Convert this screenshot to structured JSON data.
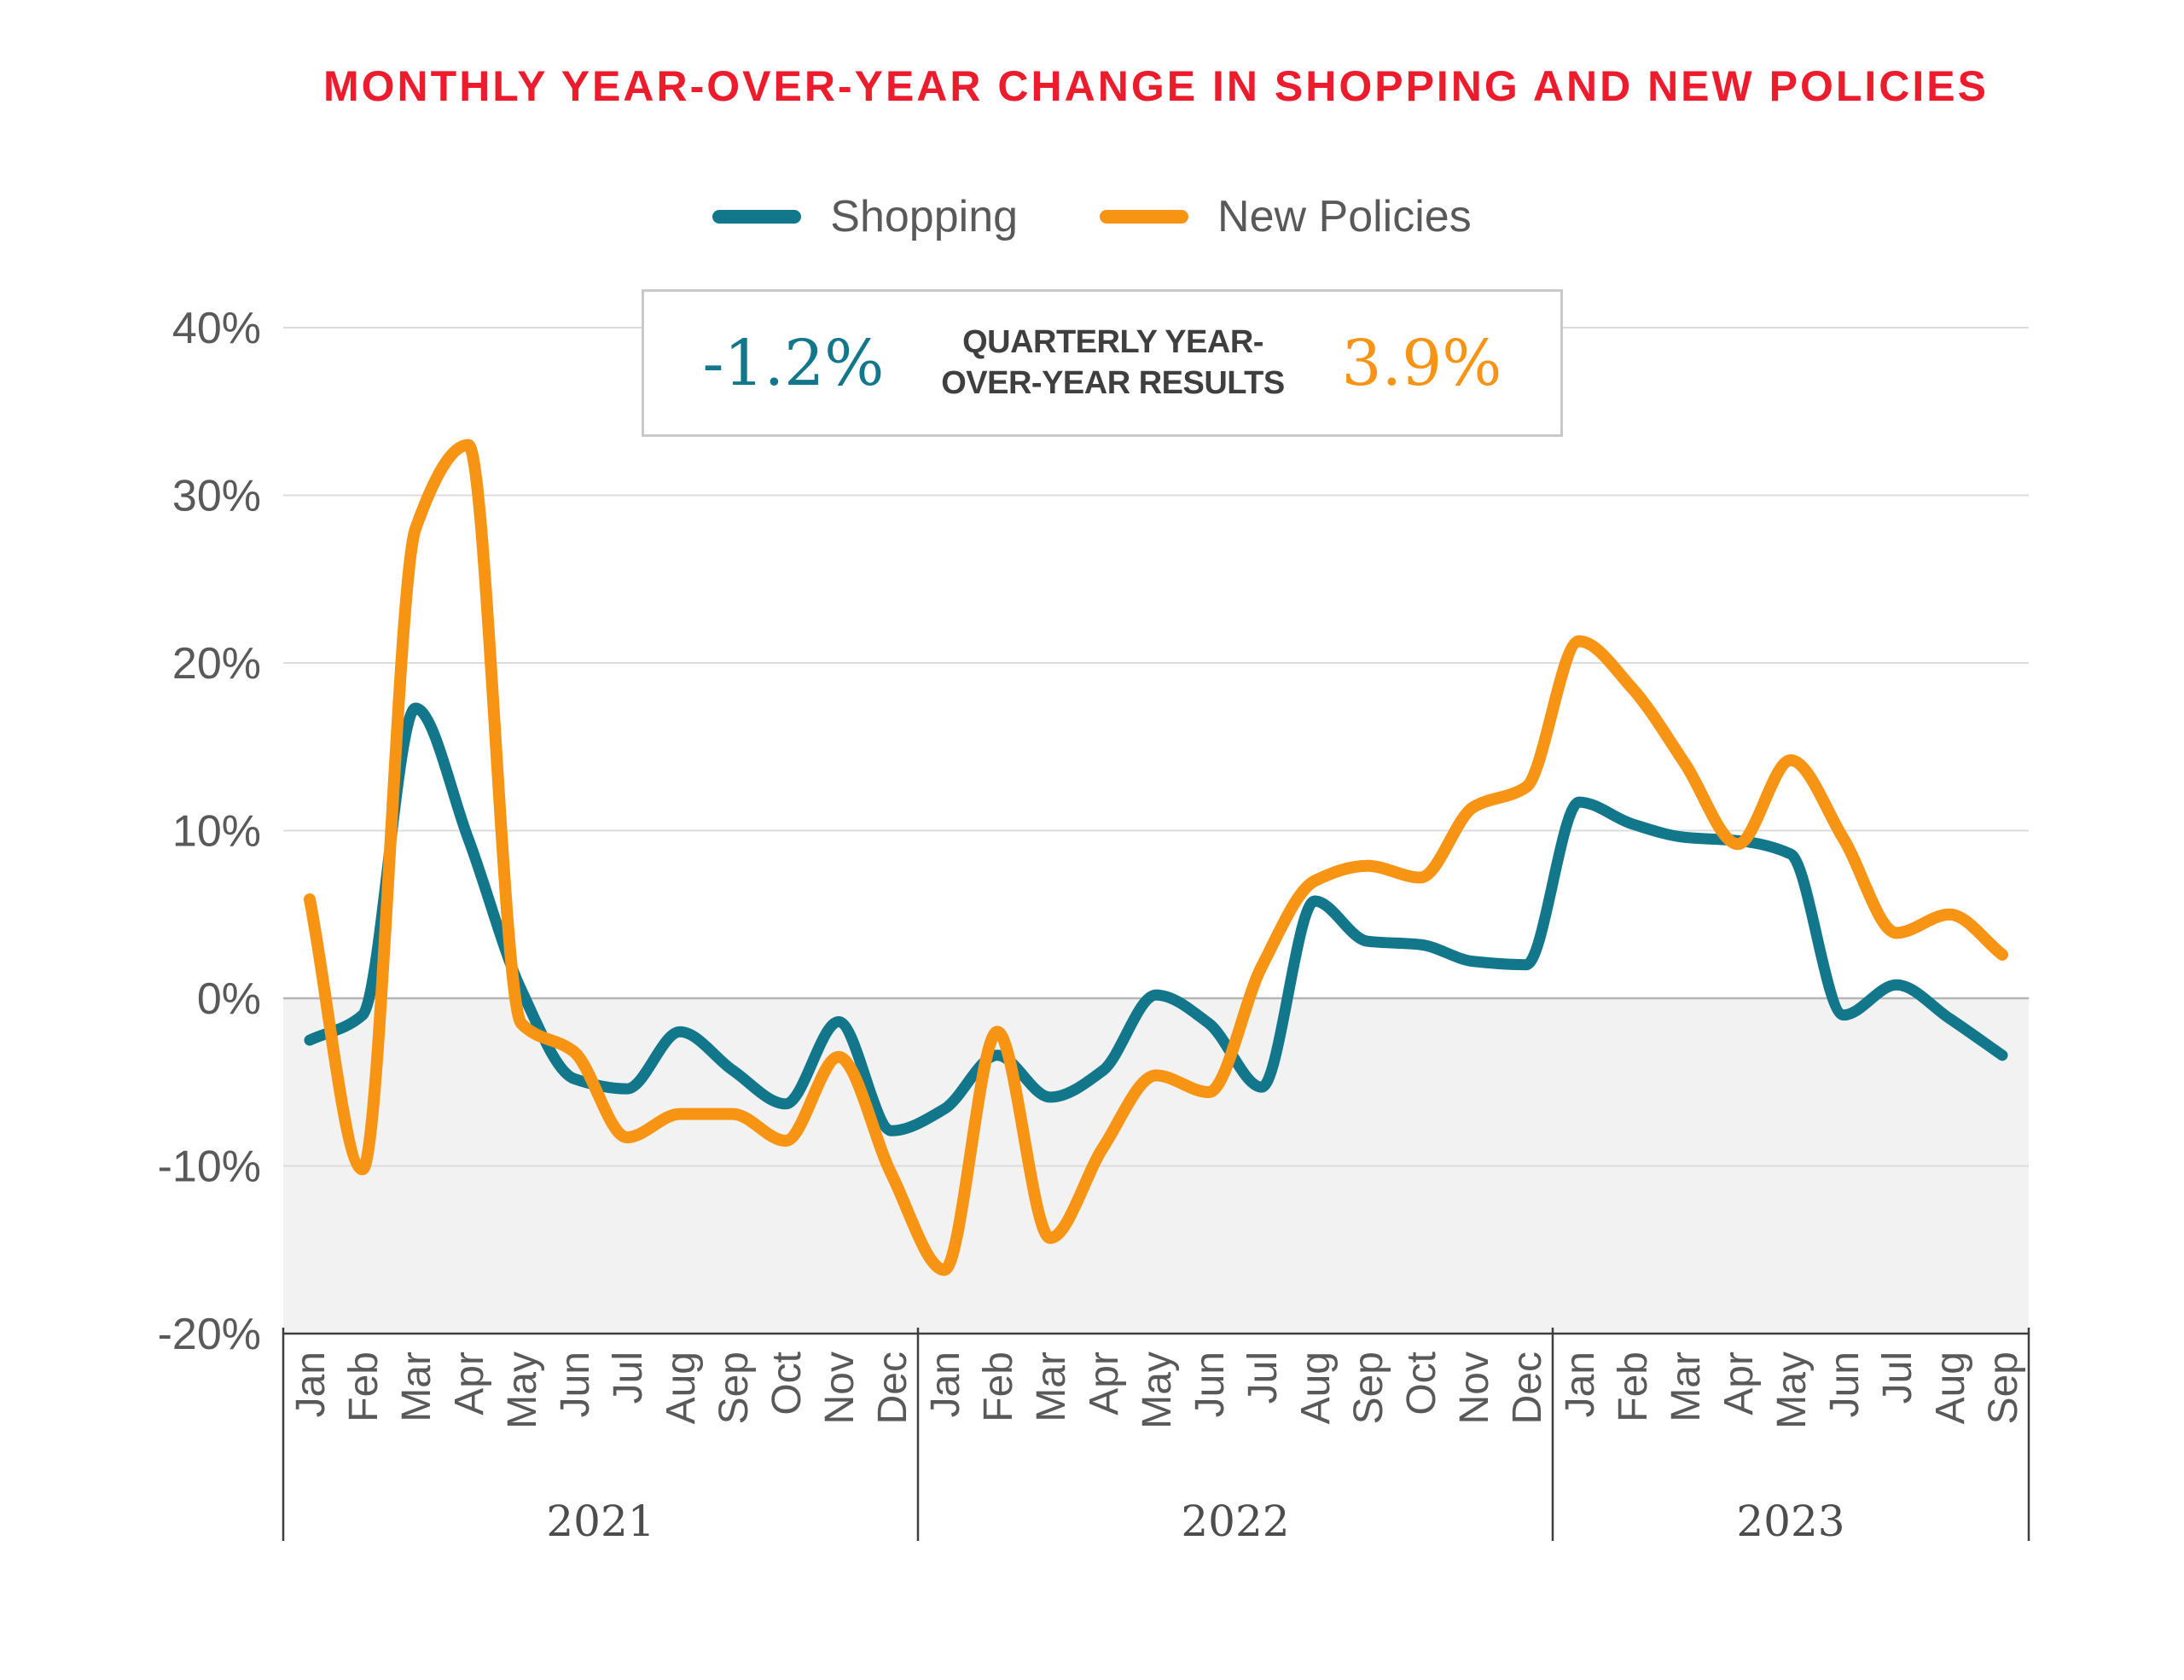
{
  "title": "MONTHLY YEAR-OVER-YEAR CHANGE IN SHOPPING AND NEW POLICIES",
  "colors": {
    "title_red": "#ec1c2d",
    "shopping": "#12778b",
    "new_policies": "#f89414",
    "axis_text": "#595959",
    "grid": "#dcdcdc",
    "zero_line": "#b5b5b5",
    "axis_line": "#3f3f3f",
    "negative_shade": "#f2f2f2"
  },
  "legend": {
    "items": [
      {
        "label": "Shopping",
        "color": "#12778b"
      },
      {
        "label": "New Policies",
        "color": "#f89414"
      }
    ]
  },
  "callout": {
    "shopping_value": "-1.2%",
    "label": "QUARTERLY YEAR-OVER-YEAR RESULTS",
    "new_policies_value": "3.9%"
  },
  "chart_data": {
    "type": "line",
    "title": "MONTHLY YEAR-OVER-YEAR CHANGE IN SHOPPING AND NEW POLICIES",
    "xlabel": "",
    "ylabel": "",
    "ylim": [
      -20,
      40
    ],
    "grid": true,
    "legend_position": "top",
    "shaded_band": {
      "from": 0,
      "to": -20
    },
    "y_ticks": [
      {
        "value": 40,
        "label": "40%"
      },
      {
        "value": 30,
        "label": "30%"
      },
      {
        "value": 20,
        "label": "20%"
      },
      {
        "value": 10,
        "label": "10%"
      },
      {
        "value": 0,
        "label": "0%"
      },
      {
        "value": -10,
        "label": "-10%"
      },
      {
        "value": -20,
        "label": "-20%"
      }
    ],
    "categories": [
      "Jan",
      "Feb",
      "Mar",
      "Apr",
      "May",
      "Jun",
      "Jul",
      "Aug",
      "Sep",
      "Oct",
      "Nov",
      "Dec",
      "Jan",
      "Feb",
      "Mar",
      "Apr",
      "May",
      "Jun",
      "Jul",
      "Aug",
      "Sep",
      "Oct",
      "Nov",
      "Dec",
      "Jan",
      "Feb",
      "Mar",
      "Apr",
      "May",
      "Jun",
      "Jul",
      "Aug",
      "Sep"
    ],
    "year_bands": [
      {
        "label": "2021",
        "start": 0,
        "count": 12
      },
      {
        "label": "2022",
        "start": 12,
        "count": 12
      },
      {
        "label": "2023",
        "start": 24,
        "count": 9
      }
    ],
    "series": [
      {
        "name": "Shopping",
        "color": "#12778b",
        "values": [
          -2.5,
          -1.0,
          17.3,
          9.5,
          0.5,
          -4.8,
          -5.4,
          -2.0,
          -4.3,
          -6.3,
          -1.4,
          -7.9,
          -6.6,
          -3.4,
          -5.9,
          -4.3,
          0.2,
          -1.5,
          -5.3,
          5.8,
          3.4,
          3.2,
          2.2,
          2.0,
          11.7,
          10.4,
          9.6,
          9.4,
          8.6,
          -1.0,
          0.8,
          -1.2,
          -3.4
        ]
      },
      {
        "name": "New Policies",
        "color": "#f89414",
        "values": [
          5.9,
          -10.2,
          28.0,
          33.0,
          -1.5,
          -3.2,
          -8.3,
          -6.9,
          -6.9,
          -8.5,
          -3.5,
          -10.5,
          -16.2,
          -2.0,
          -14.3,
          -8.9,
          -4.6,
          -5.6,
          1.9,
          7.0,
          7.9,
          7.2,
          11.4,
          12.6,
          21.3,
          18.5,
          14.0,
          9.2,
          14.2,
          9.5,
          3.9,
          5.0,
          2.6
        ]
      }
    ]
  }
}
